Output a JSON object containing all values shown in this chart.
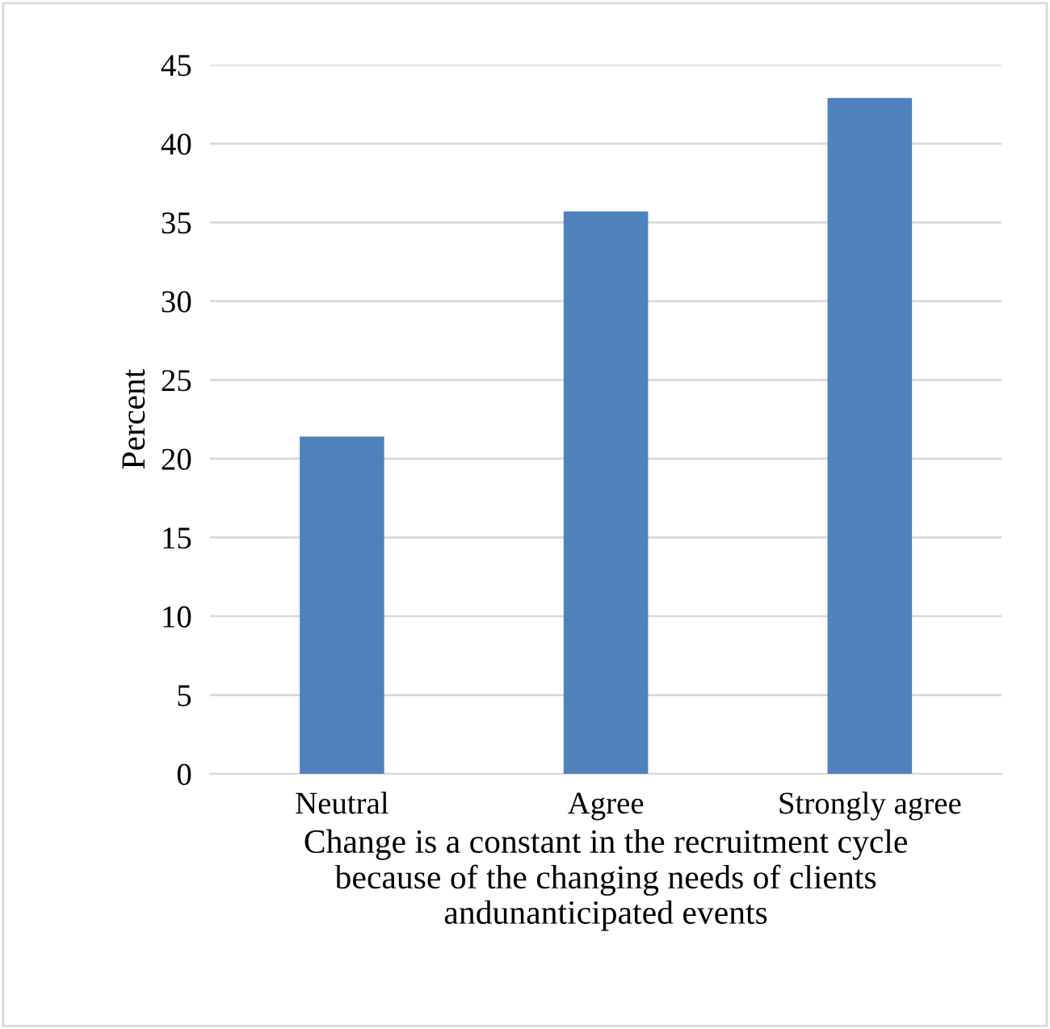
{
  "chart_data": {
    "type": "bar",
    "categories": [
      "Neutral",
      "Agree",
      "Strongly agree"
    ],
    "values": [
      21.4,
      35.7,
      42.9
    ],
    "color": "#4f81bd",
    "ylabel": "Percent",
    "xlabel": "Change is a constant in the recruitment cycle\nbecause of the changing needs of clients\nandunanticipated events",
    "ylim": [
      0,
      45
    ],
    "yticks": [
      0,
      5,
      10,
      15,
      20,
      25,
      30,
      35,
      40,
      45
    ],
    "grid": "y"
  }
}
